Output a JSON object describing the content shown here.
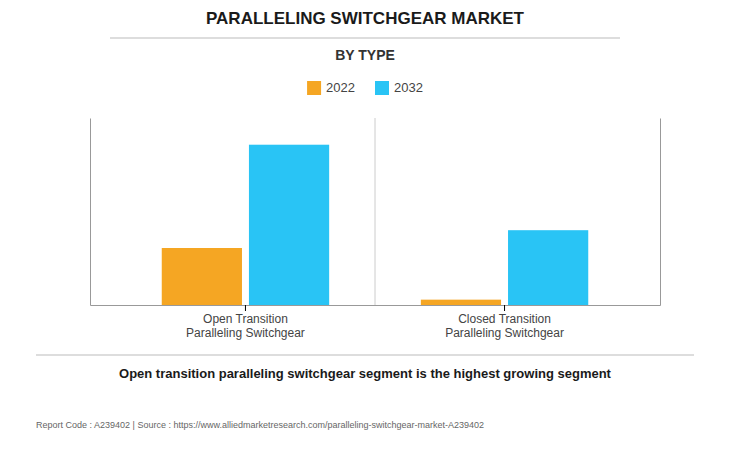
{
  "chart_data": {
    "type": "bar",
    "title": "PARALLELING SWITCHGEAR MARKET",
    "subtitle": "BY TYPE",
    "categories": [
      "Open Transition\nParalleling Switchgear",
      "Closed Transition\nParalleling Switchgear"
    ],
    "series": [
      {
        "name": "2022",
        "color": "#F5A623",
        "values": [
          3.2,
          0.3
        ]
      },
      {
        "name": "2032",
        "color": "#29C4F5",
        "values": [
          9.0,
          4.2
        ]
      }
    ],
    "ylim": [
      0,
      10.5
    ],
    "grid": false,
    "legend": "top",
    "tick_labels": "x",
    "annotations": [
      "Open transition paralleling switchgear segment is the highest growing segment",
      "Report Code : A239402  |  Source : https://www.alliedmarketresearch.com/paralleling-switchgear-market-A239402"
    ]
  }
}
